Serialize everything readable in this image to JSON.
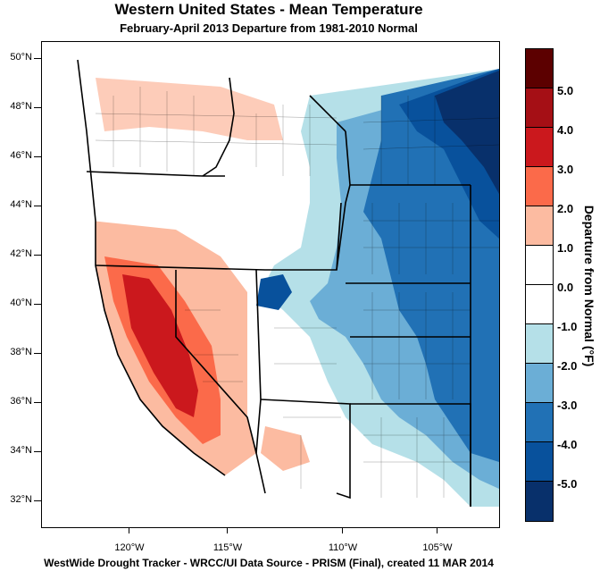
{
  "header": {
    "title": "Western United States - Mean Temperature",
    "subtitle": "February-April 2013  Departure from 1981-2010 Normal"
  },
  "footer": {
    "text": "WestWide Drought Tracker - WRCC/UI  Data Source - PRISM (Final), created 11 MAR 2014"
  },
  "map": {
    "latitude_labels": [
      "50°N",
      "48°N",
      "46°N",
      "44°N",
      "42°N",
      "40°N",
      "38°N",
      "36°N",
      "34°N",
      "32°N"
    ],
    "longitude_labels": [
      "120°W",
      "115°W",
      "110°W",
      "105°W"
    ]
  },
  "colorbar": {
    "title": "Departure from Normal (°F)",
    "labels": [
      "5.0",
      "4.0",
      "3.0",
      "2.0",
      "1.0",
      "0.0",
      "-1.0",
      "-2.0",
      "-3.0",
      "-4.0",
      "-5.0"
    ],
    "colors": [
      "#5c0000",
      "#a50f15",
      "#cb181d",
      "#fb6a4a",
      "#fcbba1",
      "#ffffff",
      "#ffffff",
      "#b5e0e8",
      "#6baed6",
      "#2171b5",
      "#08519c",
      "#08306b"
    ]
  }
}
